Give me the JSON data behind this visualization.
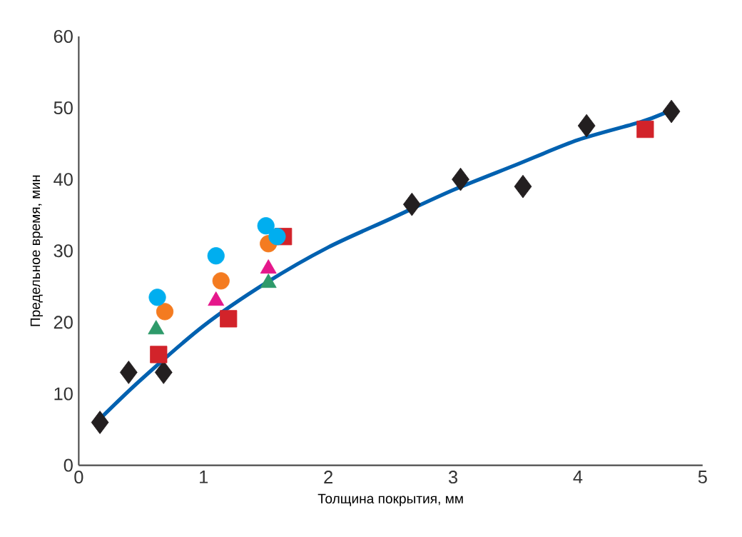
{
  "chart_data": {
    "type": "scatter",
    "xlabel": "Толщина покрытия, мм",
    "ylabel": "Предельное время, мин",
    "xlim": [
      0,
      5
    ],
    "ylim": [
      0,
      60
    ],
    "xticks": [
      0,
      1,
      2,
      3,
      4,
      5
    ],
    "yticks": [
      0,
      10,
      20,
      30,
      40,
      50,
      60
    ],
    "series": [
      {
        "type": "line",
        "color": "#0061b0",
        "marker": "none",
        "line_style": "solid",
        "x": [
          0.17,
          0.5,
          1,
          1.5,
          2,
          2.5,
          3,
          3.5,
          4,
          4.5,
          4.7
        ],
        "values": [
          6.5,
          12,
          19.5,
          25.5,
          30.5,
          34.5,
          38.5,
          42,
          45.5,
          48,
          49.3
        ]
      },
      {
        "color": "#231f20",
        "marker": "diamond",
        "x": [
          0.17,
          0.4,
          0.68,
          2.67,
          3.06,
          3.56,
          4.07,
          4.75
        ],
        "values": [
          6,
          13,
          13,
          36.5,
          40,
          39,
          47.5,
          49.5
        ]
      },
      {
        "color": "#d2232a",
        "marker": "square",
        "x": [
          0.64,
          1.2,
          1.64,
          4.54
        ],
        "values": [
          15.5,
          20.5,
          32,
          47
        ]
      },
      {
        "color": "#2e9a6a",
        "marker": "triangle",
        "x": [
          0.62,
          1.52
        ],
        "values": [
          19,
          25.5
        ]
      },
      {
        "color": "#e5178b",
        "marker": "triangle",
        "x": [
          1.1,
          1.52
        ],
        "values": [
          23,
          27.5
        ]
      },
      {
        "color": "#f47b20",
        "marker": "circle",
        "x": [
          0.69,
          1.14,
          1.52
        ],
        "values": [
          21.5,
          25.8,
          31
        ]
      },
      {
        "color": "#00aeef",
        "marker": "circle",
        "x": [
          0.63,
          1.1,
          1.5,
          1.59
        ],
        "values": [
          23.5,
          29.3,
          33.5,
          32
        ]
      }
    ]
  }
}
